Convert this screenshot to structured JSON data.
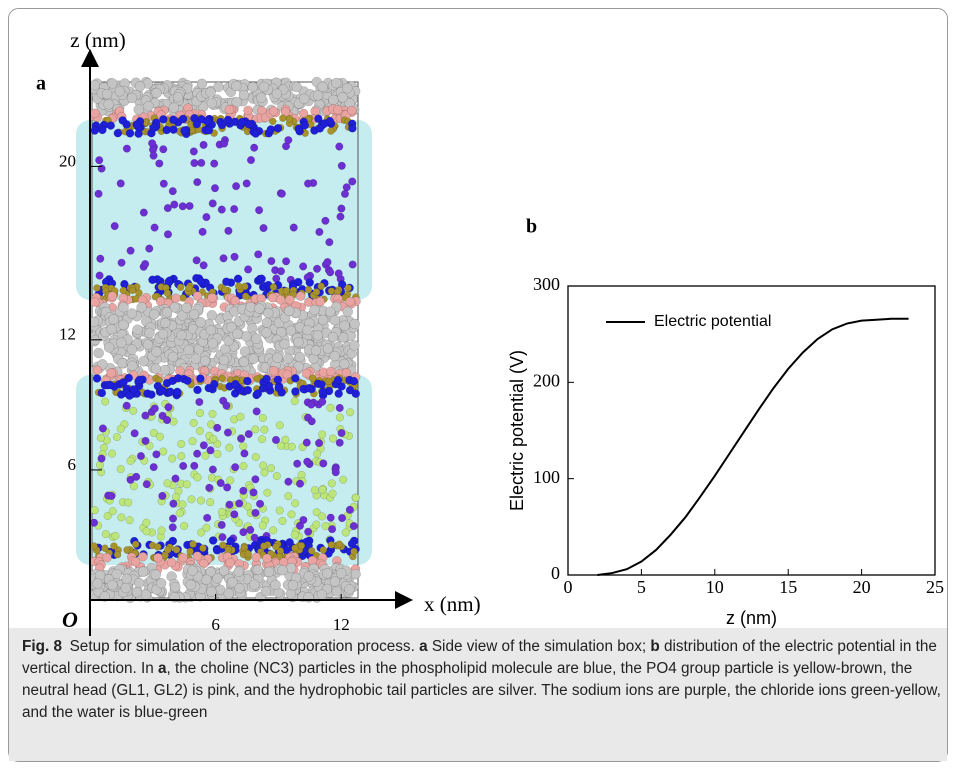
{
  "chart_data": [
    {
      "type": "simulation-box",
      "panel_label": "a",
      "xlabel": "x (nm)",
      "ylabel": "z (nm)",
      "origin_label": "O",
      "xlim": [
        0,
        15
      ],
      "ylim": [
        0,
        25
      ],
      "xticks": [
        6,
        12
      ],
      "yticks": [
        6,
        12,
        20
      ]
    },
    {
      "type": "line",
      "panel_label": "b",
      "xlabel": "z (nm)",
      "ylabel": "Electric potential (V)",
      "x": [
        2,
        3,
        4,
        5,
        6,
        7,
        8,
        9,
        10,
        11,
        12,
        13,
        14,
        15,
        16,
        17,
        18,
        19,
        20,
        21,
        22,
        23.2
      ],
      "series": [
        {
          "name": "Electric potential",
          "color": "#000000",
          "values": [
            0,
            2,
            6,
            14,
            26,
            42,
            60,
            81,
            103,
            126,
            149,
            172,
            194,
            214,
            231,
            245,
            255,
            261,
            264,
            265,
            266,
            266
          ]
        }
      ],
      "xlim": [
        0,
        25
      ],
      "ylim": [
        0,
        300
      ],
      "xticks": [
        0,
        5,
        10,
        15,
        20,
        25
      ],
      "yticks": [
        0,
        100,
        200,
        300
      ],
      "legend": "upper left"
    }
  ],
  "caption": {
    "label": "Fig. 8",
    "parts": [
      "Setup for simulation of the electroporation process. ",
      "a",
      " Side view of the simulation box; ",
      "b",
      " distribution of the electric potential in the vertical direction. In ",
      "a",
      ", the choline (NC3) particles in the phospholipid molecule are blue, the PO4 group particle is yellow-brown, the neutral head (GL1, GL2) is pink, and the hydrophobic tail particles are silver. The sodium ions are purple, the chloride ions green-yellow, and the water is blue-green"
    ]
  }
}
